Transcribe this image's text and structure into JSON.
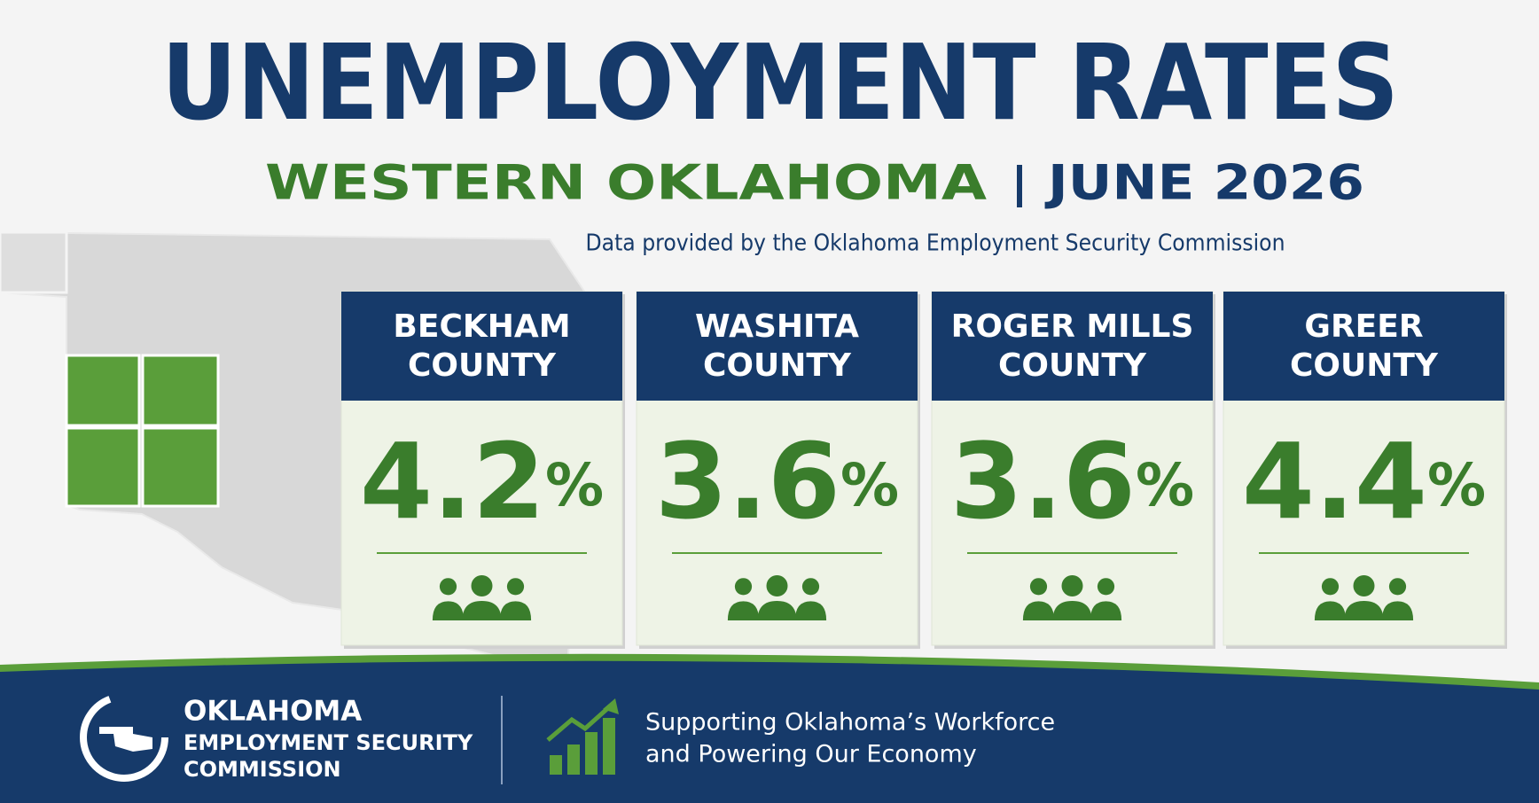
{
  "header": {
    "title": "UNEMPLOYMENT RATES",
    "region": "WESTERN OKLAHOMA",
    "date": "JUNE 2026",
    "source": "Data provided by the Oklahoma Employment Security Commission"
  },
  "cards": [
    {
      "name": [
        "BECKHAM",
        "COUNTY"
      ],
      "rate": 4.2,
      "unit": "%"
    },
    {
      "name": [
        "WASHITA",
        "COUNTY"
      ],
      "rate": 3.6,
      "unit": "%"
    },
    {
      "name": [
        "ROGER MILLS",
        "COUNTY"
      ],
      "rate": 3.6,
      "unit": "%"
    },
    {
      "name": [
        "GREER",
        "COUNTY"
      ],
      "rate": 4.4,
      "unit": "%"
    }
  ],
  "footer": {
    "org": [
      "OKLAHOMA",
      "EMPLOYMENT SECURITY",
      "COMMISSION"
    ],
    "tagline": [
      "Supporting Oklahoma’s Workforce",
      "and Powering Our Economy"
    ]
  }
}
